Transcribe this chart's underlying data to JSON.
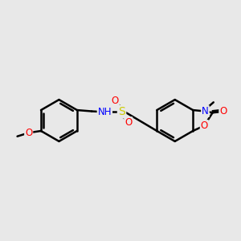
{
  "background_color": "#e8e8e8",
  "bond_color": "#000000",
  "bond_width": 1.8,
  "atom_colors": {
    "O": "#ff0000",
    "N": "#0000ff",
    "S": "#cccc00",
    "C": "#000000",
    "H": "#000000"
  },
  "figsize": [
    3.0,
    3.0
  ],
  "dpi": 100
}
